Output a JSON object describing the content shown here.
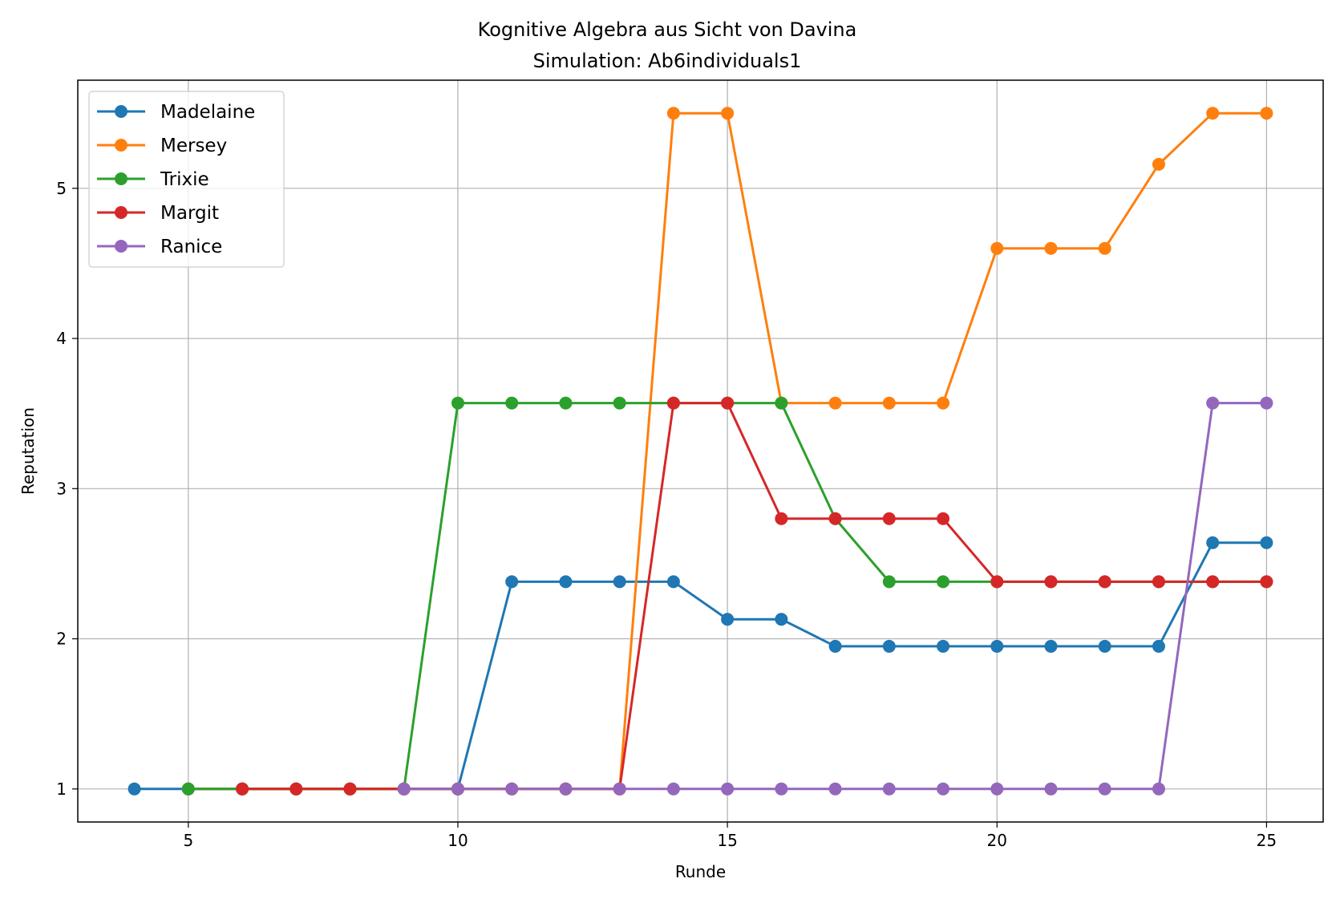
{
  "chart_data": {
    "type": "line",
    "title": "Kognitive Algebra aus Sicht von Davina",
    "subtitle": "Simulation: Ab6individuals1",
    "xlabel": "Runde",
    "ylabel": "Reputation",
    "xlim": [
      2.95,
      26.05
    ],
    "ylim": [
      0.78,
      5.72
    ],
    "xticks": [
      5,
      10,
      15,
      20,
      25
    ],
    "yticks": [
      1,
      2,
      3,
      4,
      5
    ],
    "grid": true,
    "legend_position": "top-left",
    "series": [
      {
        "name": "Madelaine",
        "color": "#1f77b4",
        "x": [
          4,
          5,
          6,
          7,
          8,
          9,
          10,
          11,
          12,
          13,
          14,
          15,
          16,
          17,
          18,
          19,
          20,
          21,
          22,
          23,
          24,
          25
        ],
        "y": [
          1,
          1,
          1,
          1,
          1,
          1,
          1,
          2.38,
          2.38,
          2.38,
          2.38,
          2.13,
          2.13,
          1.95,
          1.95,
          1.95,
          1.95,
          1.95,
          1.95,
          1.95,
          2.64,
          2.64
        ]
      },
      {
        "name": "Mersey",
        "color": "#ff7f0e",
        "x": [
          5,
          6,
          7,
          8,
          9,
          10,
          11,
          12,
          13,
          14,
          15,
          16,
          17,
          18,
          19,
          20,
          21,
          22,
          23,
          24,
          25
        ],
        "y": [
          1,
          1,
          1,
          1,
          1,
          1,
          1,
          1,
          1,
          5.5,
          5.5,
          3.57,
          3.57,
          3.57,
          3.57,
          4.6,
          4.6,
          4.6,
          5.16,
          5.5,
          5.5
        ]
      },
      {
        "name": "Trixie",
        "color": "#2ca02c",
        "x": [
          5,
          6,
          7,
          8,
          9,
          10,
          11,
          12,
          13,
          14,
          15,
          16,
          17,
          18,
          19,
          20,
          21,
          22,
          23,
          24,
          25
        ],
        "y": [
          1,
          1,
          1,
          1,
          1,
          3.57,
          3.57,
          3.57,
          3.57,
          3.57,
          3.57,
          3.57,
          2.8,
          2.38,
          2.38,
          2.38,
          2.38,
          2.38,
          2.38,
          2.38,
          2.38
        ]
      },
      {
        "name": "Margit",
        "color": "#d62728",
        "x": [
          6,
          7,
          8,
          9,
          10,
          11,
          12,
          13,
          14,
          15,
          16,
          17,
          18,
          19,
          20,
          21,
          22,
          23,
          24,
          25
        ],
        "y": [
          1,
          1,
          1,
          1,
          1,
          1,
          1,
          1,
          3.57,
          3.57,
          2.8,
          2.8,
          2.8,
          2.8,
          2.38,
          2.38,
          2.38,
          2.38,
          2.38,
          2.38
        ]
      },
      {
        "name": "Ranice",
        "color": "#9467bd",
        "x": [
          9,
          10,
          11,
          12,
          13,
          14,
          15,
          16,
          17,
          18,
          19,
          20,
          21,
          22,
          23,
          24,
          25
        ],
        "y": [
          1,
          1,
          1,
          1,
          1,
          1,
          1,
          1,
          1,
          1,
          1,
          1,
          1,
          1,
          1,
          3.57,
          3.57
        ]
      }
    ]
  }
}
